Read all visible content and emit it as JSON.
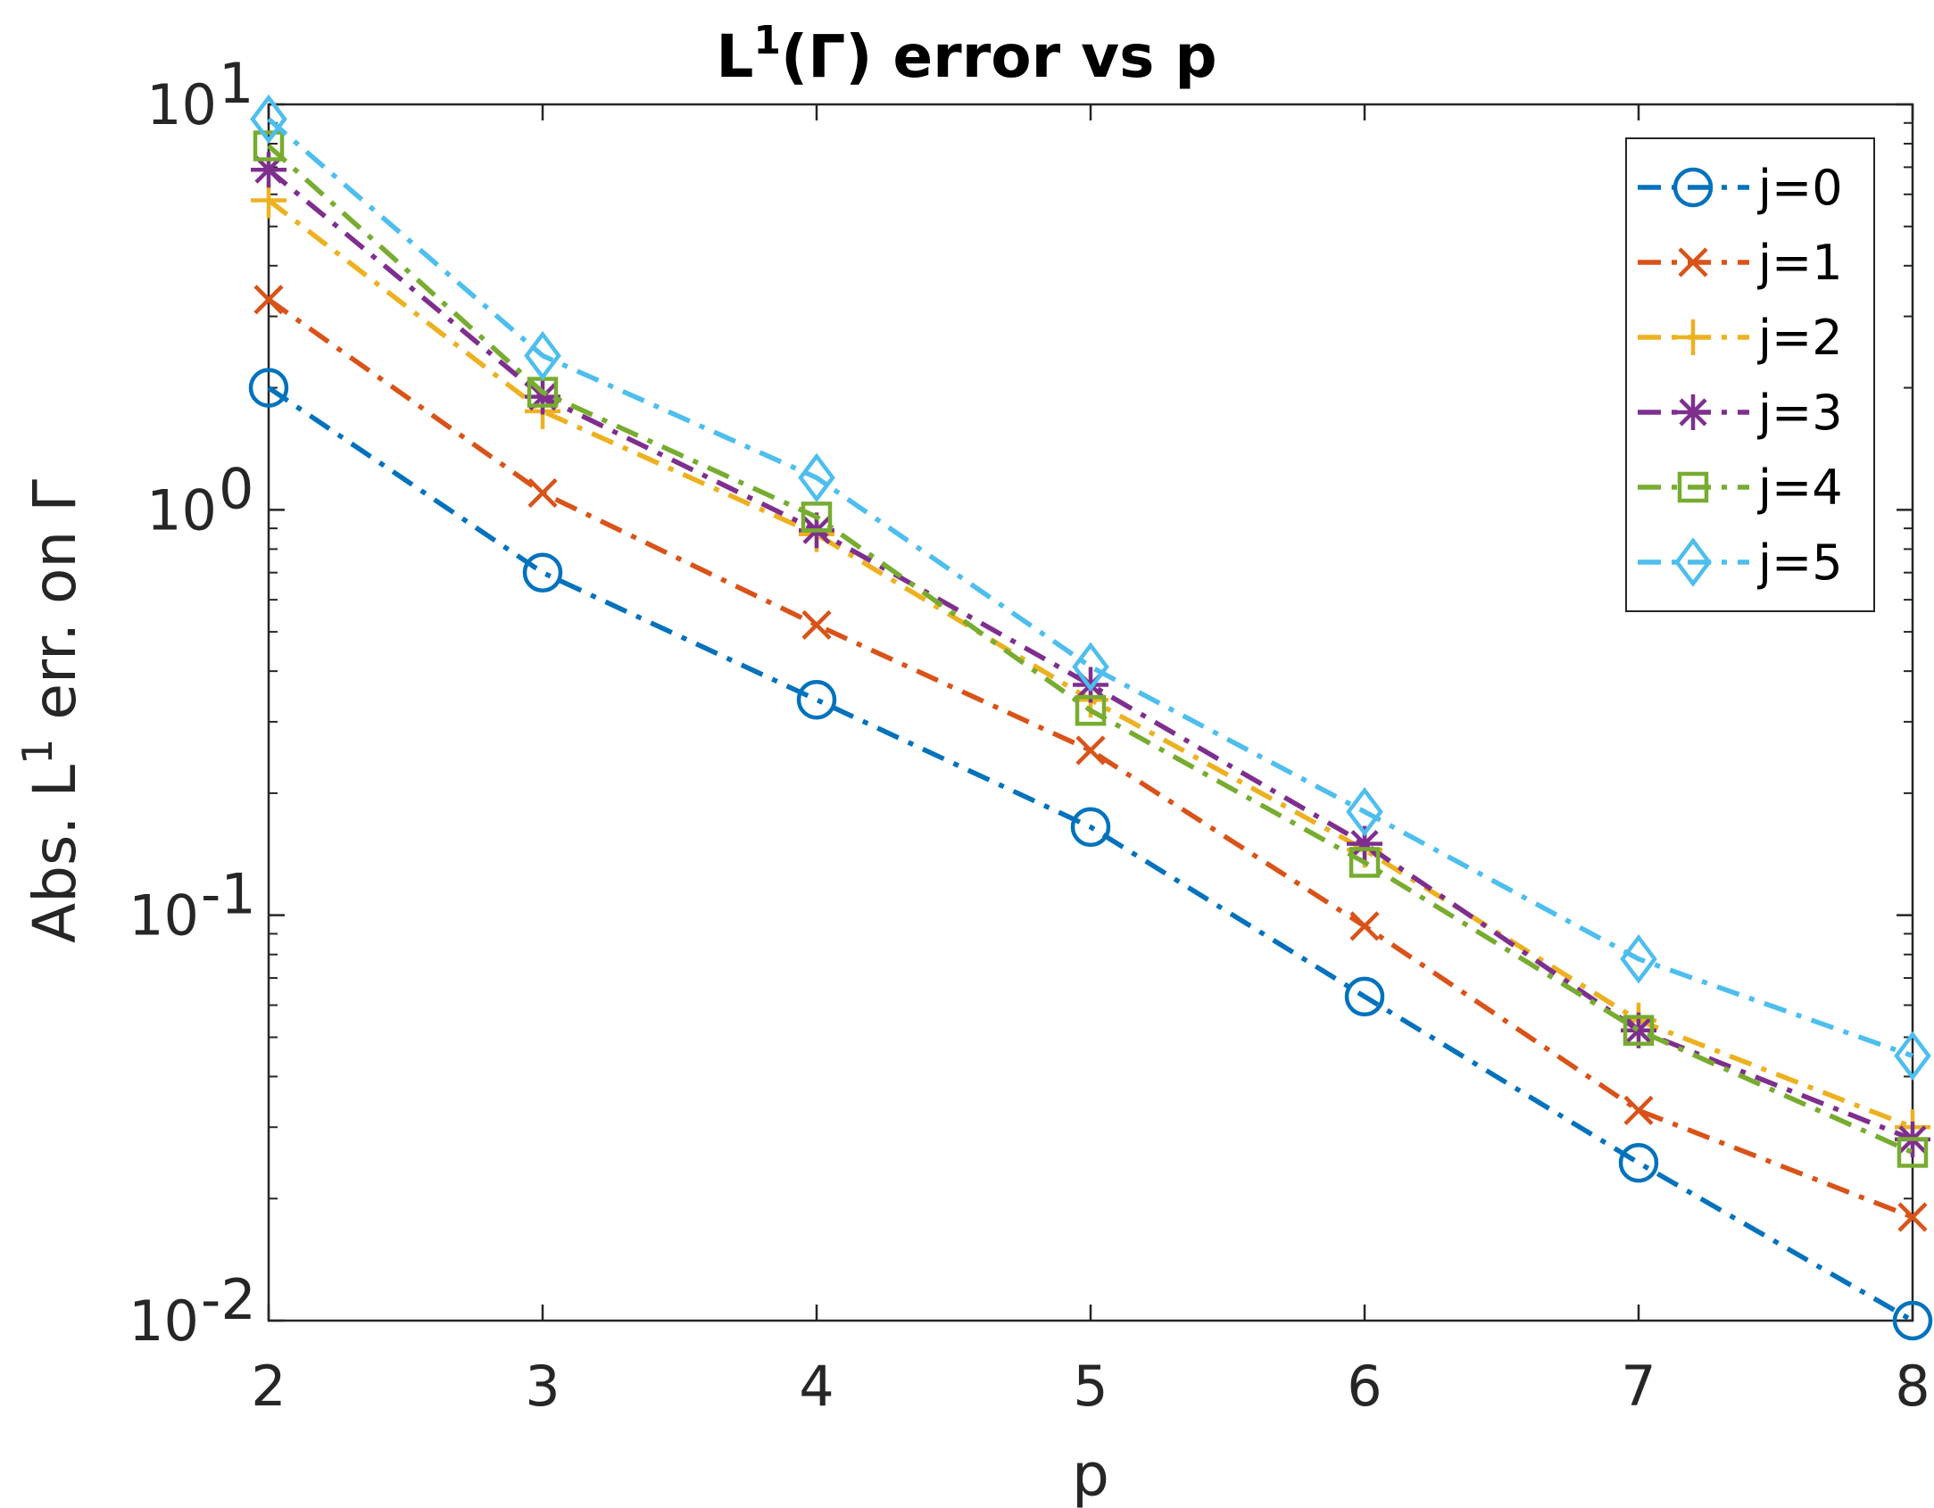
{
  "chart_data": {
    "type": "line",
    "title": {
      "main": "L",
      "sup": "1",
      "rest": "(Γ) error vs p"
    },
    "xlabel": "p",
    "ylabel": {
      "before": "Abs. L",
      "sup": "1",
      "after": " err. on Γ"
    },
    "x": [
      2,
      3,
      4,
      5,
      6,
      7,
      8
    ],
    "xlim": [
      2,
      8
    ],
    "ylim": [
      0.01,
      10
    ],
    "yscale": "log",
    "grid": false,
    "legend_position": "top-right",
    "x_ticks": [
      "2",
      "3",
      "4",
      "5",
      "6",
      "7",
      "8"
    ],
    "y_ticks": [
      {
        "value": 10,
        "base": "10",
        "exp": "1"
      },
      {
        "value": 1,
        "base": "10",
        "exp": "0"
      },
      {
        "value": 0.1,
        "base": "10",
        "exp": "-1"
      },
      {
        "value": 0.01,
        "base": "10",
        "exp": "-2"
      }
    ],
    "series": [
      {
        "name": "j=0",
        "color": "#0072BD",
        "marker": "circle",
        "values": [
          2.0,
          0.7,
          0.34,
          0.165,
          0.063,
          0.0245,
          0.01
        ]
      },
      {
        "name": "j=1",
        "color": "#D95319",
        "marker": "x",
        "values": [
          3.3,
          1.1,
          0.52,
          0.255,
          0.094,
          0.033,
          0.018
        ]
      },
      {
        "name": "j=2",
        "color": "#EDB120",
        "marker": "plus",
        "values": [
          5.8,
          1.75,
          0.87,
          0.34,
          0.145,
          0.055,
          0.03
        ]
      },
      {
        "name": "j=3",
        "color": "#7E2F8E",
        "marker": "asterisk",
        "values": [
          6.9,
          1.9,
          0.89,
          0.37,
          0.15,
          0.052,
          0.028
        ]
      },
      {
        "name": "j=4",
        "color": "#77AC30",
        "marker": "square",
        "values": [
          7.9,
          1.95,
          0.96,
          0.32,
          0.135,
          0.052,
          0.026
        ]
      },
      {
        "name": "j=5",
        "color": "#4DBEEE",
        "marker": "diamond",
        "values": [
          9.2,
          2.4,
          1.2,
          0.41,
          0.18,
          0.078,
          0.045
        ]
      }
    ]
  }
}
